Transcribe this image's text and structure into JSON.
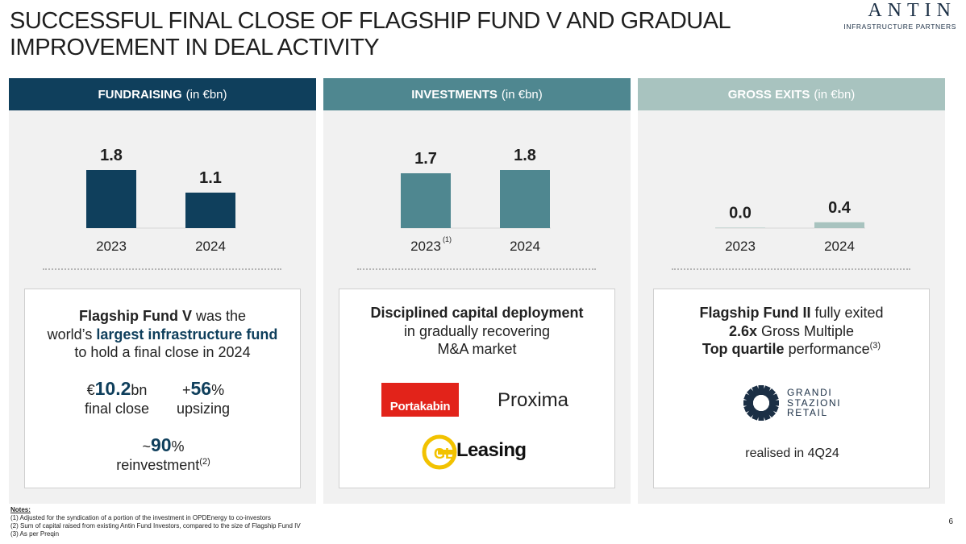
{
  "header": {
    "title": "SUCCESSFUL FINAL CLOSE OF FLAGSHIP FUND V AND GRADUAL IMPROVEMENT IN DEAL ACTIVITY",
    "logo_word": "ANTIN",
    "logo_sub": "INFRASTRUCTURE PARTNERS"
  },
  "panels": {
    "fundraising": {
      "title_bold": "FUNDRAISING",
      "title_unit": "(in €bn)",
      "text_bold": "Flagship Fund V",
      "text_1": " was the",
      "text_2": "world’s ",
      "text_highlight": "largest infrastructure fund",
      "text_3": "to hold a final close in 2024",
      "metric1_prefix": "€",
      "metric1_value": "10.2",
      "metric1_suffix": "bn",
      "metric1_label": "final close",
      "metric2_prefix": "+",
      "metric2_value": "56",
      "metric2_suffix": "%",
      "metric2_label": "upsizing",
      "metric3_prefix": "~",
      "metric3_value": "90",
      "metric3_suffix": "%",
      "metric3_label": "reinvestment",
      "metric3_note": "(2)"
    },
    "investments": {
      "title_bold": "INVESTMENTS",
      "title_unit": "(in €bn)",
      "text_bold": "Disciplined capital deployment",
      "text_1": "in gradually recovering",
      "text_2": "M&A market",
      "logos": [
        "Portakabin",
        "Proxima",
        "Leasing"
      ],
      "gl_letters": "GL"
    },
    "exits": {
      "title_bold": "GROSS EXITS",
      "title_unit": "(in €bn)",
      "text_bold1": "Flagship Fund II",
      "text_1": " fully exited",
      "text_bold2": "2.6x",
      "text_2": " Gross Multiple",
      "text_bold3": "Top quartile",
      "text_3": " performance",
      "text_note": "(3)",
      "logo_lines": [
        "GRANDI",
        "STAZIONI",
        "RETAIL"
      ],
      "realised": "realised in 4Q24"
    }
  },
  "chart_data": [
    {
      "type": "bar",
      "title": "FUNDRAISING (in €bn)",
      "categories": [
        "2023",
        "2024"
      ],
      "category_notes": [
        "",
        ""
      ],
      "values": [
        1.8,
        1.1
      ],
      "labels": [
        "1.8",
        "1.1"
      ],
      "ylim": [
        0,
        1.8
      ],
      "color": "#0f3f5c"
    },
    {
      "type": "bar",
      "title": "INVESTMENTS (in €bn)",
      "categories": [
        "2023",
        "2024"
      ],
      "category_notes": [
        "(1)",
        ""
      ],
      "values": [
        1.7,
        1.8
      ],
      "labels": [
        "1.7",
        "1.8"
      ],
      "ylim": [
        0,
        1.8
      ],
      "color": "#4f8790"
    },
    {
      "type": "bar",
      "title": "GROSS EXITS (in €bn)",
      "categories": [
        "2023",
        "2024"
      ],
      "category_notes": [
        "",
        ""
      ],
      "values": [
        0.0,
        0.4
      ],
      "labels": [
        "0.0",
        "0.4"
      ],
      "ylim": [
        0,
        4
      ],
      "color": "#a8c3bf"
    }
  ],
  "notes": {
    "title": "Notes:",
    "items": [
      "(1)   Adjusted for the syndication of a portion of the investment in OPDEnergy to co-investors",
      "(2)   Sum of capital raised from existing Antin Fund Investors, compared to the size of Flagship Fund IV",
      "(3)   As per Preqin"
    ]
  },
  "page_number": "6"
}
